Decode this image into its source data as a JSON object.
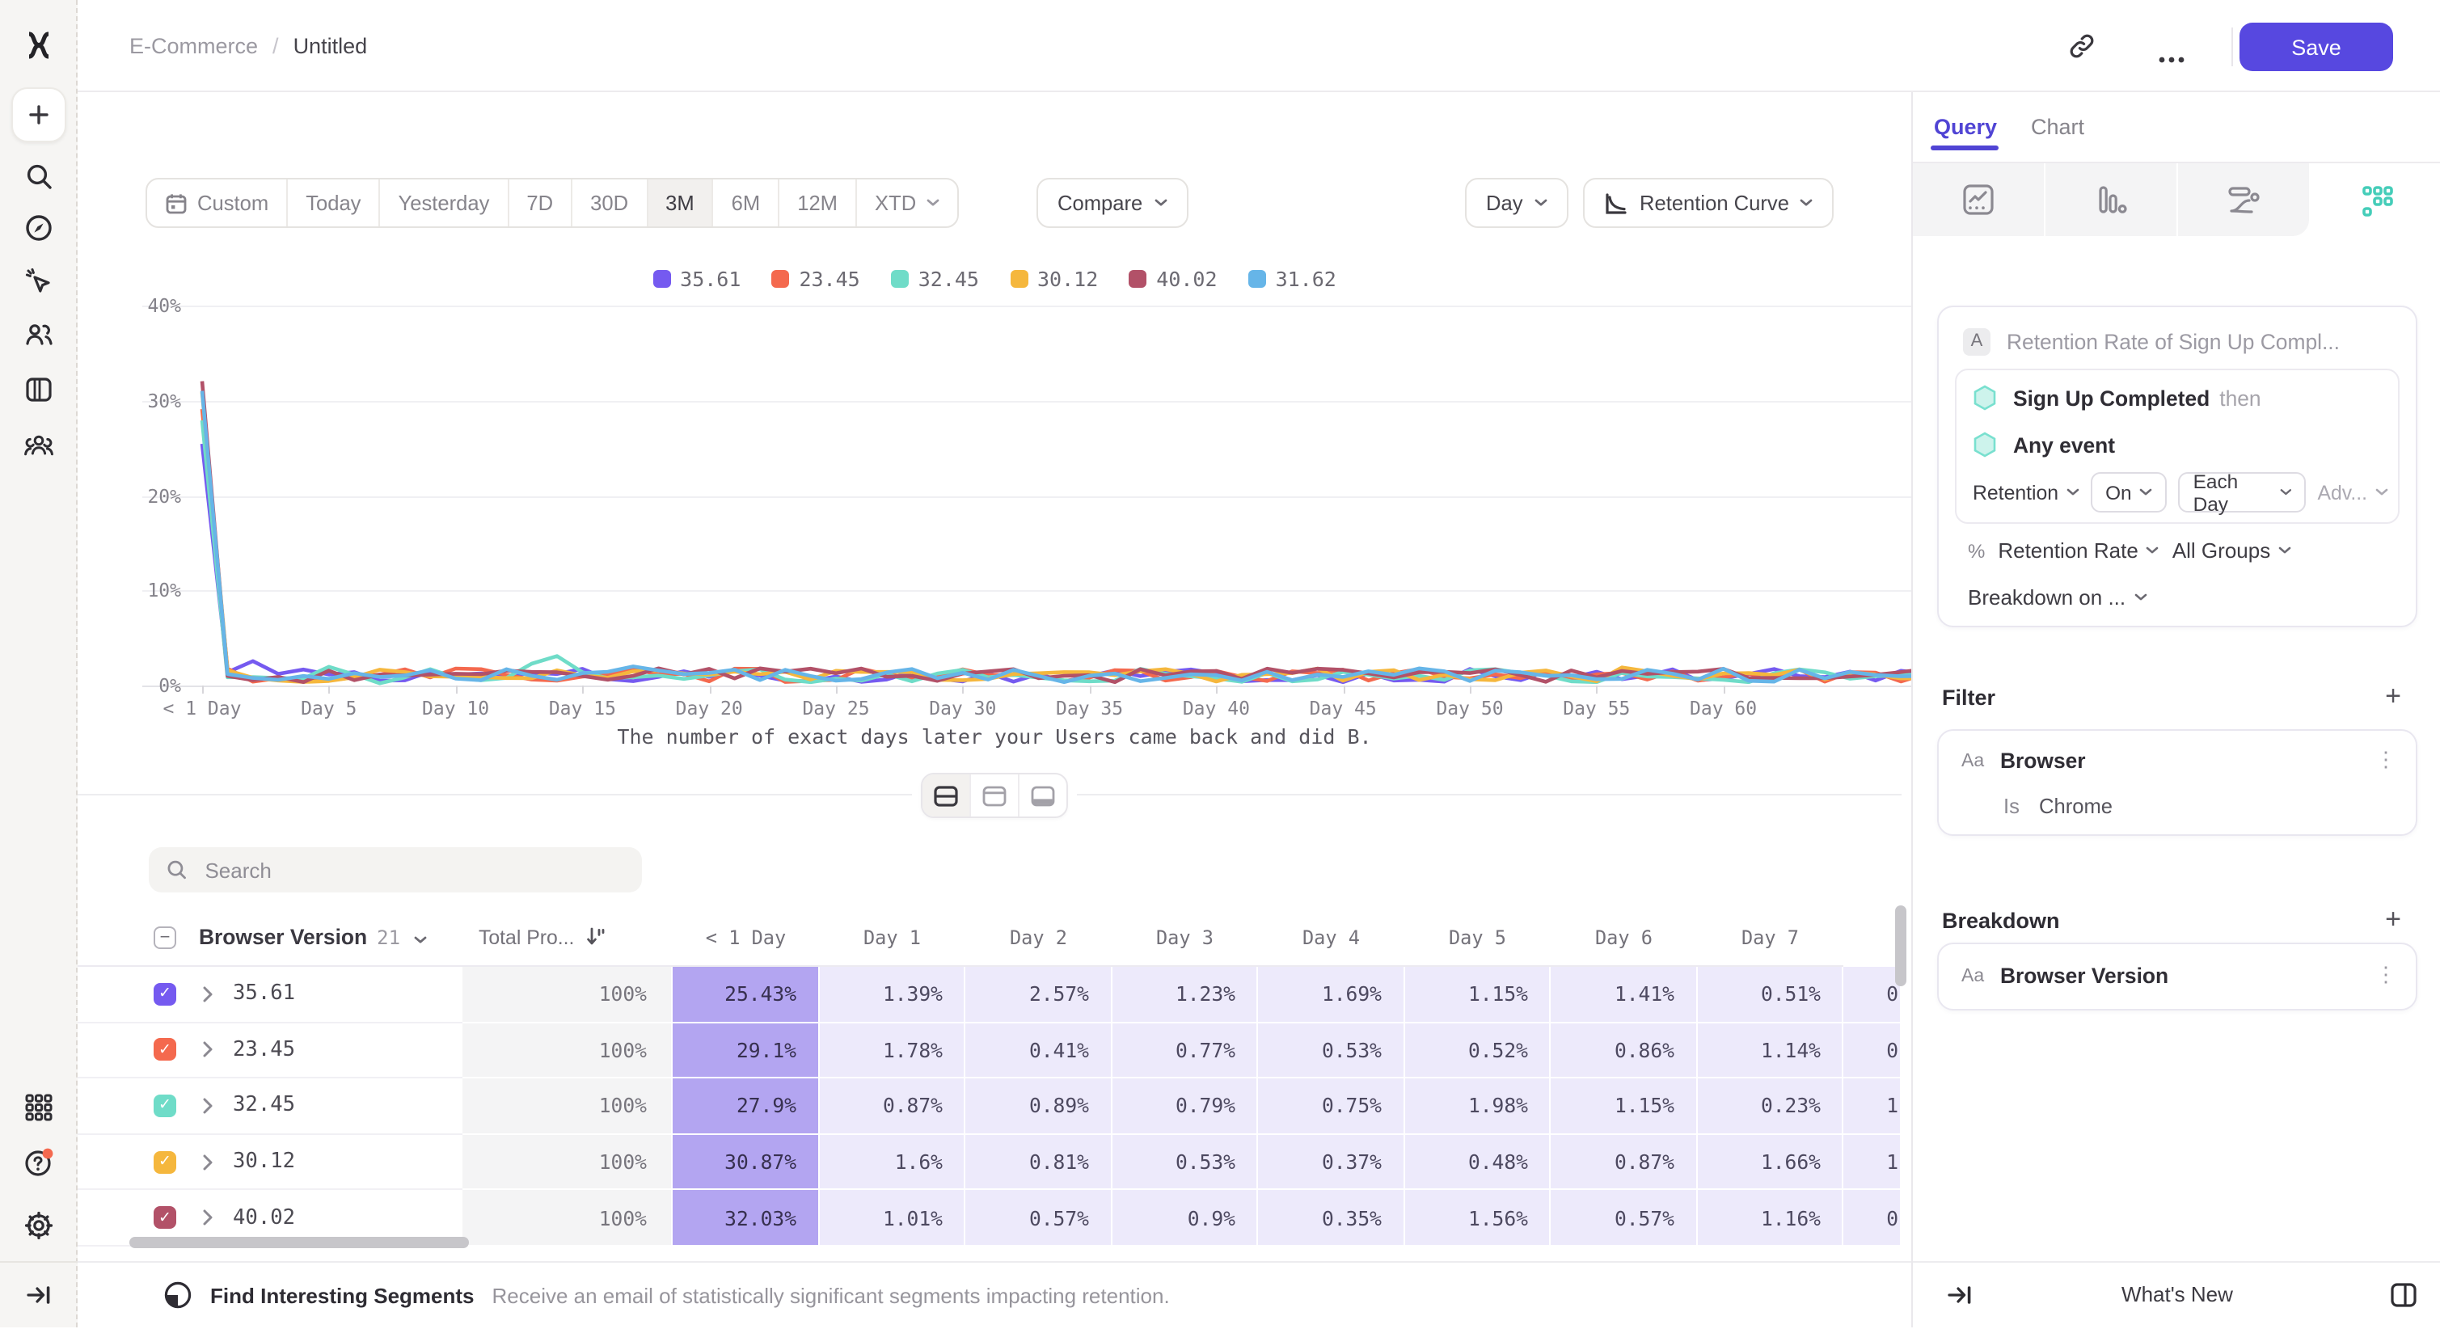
{
  "header": {
    "breadcrumb_root": "E-Commerce",
    "breadcrumb_sep": "/",
    "breadcrumb_current": "Untitled",
    "save_label": "Save"
  },
  "toolbar": {
    "date_ranges": [
      "Custom",
      "Today",
      "Yesterday",
      "7D",
      "30D",
      "3M",
      "6M",
      "12M",
      "XTD"
    ],
    "selected_range": "3M",
    "compare_label": "Compare",
    "granularity_label": "Day",
    "chart_type_label": "Retention Curve"
  },
  "legend": [
    {
      "label": "35.61",
      "color": "#755af0"
    },
    {
      "label": "23.45",
      "color": "#f4694e"
    },
    {
      "label": "32.45",
      "color": "#6fdcc8"
    },
    {
      "label": "30.12",
      "color": "#f5b73d"
    },
    {
      "label": "40.02",
      "color": "#b25168"
    },
    {
      "label": "31.62",
      "color": "#66b5e8"
    }
  ],
  "chart": {
    "y_ticks": [
      "40%",
      "30%",
      "20%",
      "10%",
      "0%"
    ],
    "x_ticks": [
      "< 1 Day",
      "Day 5",
      "Day 10",
      "Day 15",
      "Day 20",
      "Day 25",
      "Day 30",
      "Day 35",
      "Day 40",
      "Day 45",
      "Day 50",
      "Day 55",
      "Day 60"
    ],
    "caption": "The number of exact days later your Users came back and did B."
  },
  "chart_data": {
    "type": "line",
    "title": "Retention Curve",
    "xlabel": "The number of exact days later your Users came back and did B.",
    "ylabel": "Retention Rate (%)",
    "ylim": [
      0,
      40
    ],
    "x_range_days": [
      0,
      60
    ],
    "x_tick_labels": [
      "< 1 Day",
      "Day 5",
      "Day 10",
      "Day 15",
      "Day 20",
      "Day 25",
      "Day 30",
      "Day 35",
      "Day 40",
      "Day 45",
      "Day 50",
      "Day 55",
      "Day 60"
    ],
    "grid": "horizontal",
    "legend_position": "top-center",
    "note": "Each series drops from ~25-32% at day 0 to ~0.2-3% noise for days 1-60.",
    "series": [
      {
        "name": "35.61",
        "color": "#755af0",
        "days_0_to_7_pct": [
          25.43,
          1.39,
          2.57,
          1.23,
          1.69,
          1.15,
          1.41,
          0.51
        ]
      },
      {
        "name": "23.45",
        "color": "#f4694e",
        "days_0_to_7_pct": [
          29.1,
          1.78,
          0.41,
          0.77,
          0.53,
          0.52,
          0.86,
          1.14
        ]
      },
      {
        "name": "32.45",
        "color": "#6fdcc8",
        "days_0_to_7_pct": [
          27.9,
          0.87,
          0.89,
          0.79,
          0.75,
          1.98,
          1.15,
          0.23
        ]
      },
      {
        "name": "30.12",
        "color": "#f5b73d",
        "days_0_to_7_pct": [
          30.87,
          1.6,
          0.81,
          0.53,
          0.37,
          0.48,
          0.87,
          1.66
        ]
      },
      {
        "name": "40.02",
        "color": "#b25168",
        "days_0_to_7_pct": [
          32.03,
          1.01,
          0.57,
          0.9,
          0.35,
          1.56,
          0.57,
          1.16
        ]
      },
      {
        "name": "31.62",
        "color": "#66b5e8",
        "days_0_to_7_pct": [
          31.0,
          1.2,
          0.8,
          0.6,
          1.0,
          0.7,
          1.3,
          0.9
        ],
        "approximate": true
      }
    ]
  },
  "view_toggles": {
    "options": [
      "split-view",
      "chart-only-view",
      "table-only-view"
    ],
    "selected": "split-view"
  },
  "table": {
    "search_placeholder": "Search",
    "group_column_label": "Browser Version",
    "group_count": "21",
    "total_column_label": "Total Pro...",
    "day_columns": [
      "< 1 Day",
      "Day 1",
      "Day 2",
      "Day 3",
      "Day 4",
      "Day 5",
      "Day 6",
      "Day 7"
    ],
    "rows": [
      {
        "label": "35.61",
        "color": "#755af0",
        "total": "100%",
        "values": [
          "25.43%",
          "1.39%",
          "2.57%",
          "1.23%",
          "1.69%",
          "1.15%",
          "1.41%",
          "0.51%"
        ],
        "day8_partial": "0"
      },
      {
        "label": "23.45",
        "color": "#f4694e",
        "total": "100%",
        "values": [
          "29.1%",
          "1.78%",
          "0.41%",
          "0.77%",
          "0.53%",
          "0.52%",
          "0.86%",
          "1.14%"
        ],
        "day8_partial": "0"
      },
      {
        "label": "32.45",
        "color": "#6fdcc8",
        "total": "100%",
        "values": [
          "27.9%",
          "0.87%",
          "0.89%",
          "0.79%",
          "0.75%",
          "1.98%",
          "1.15%",
          "0.23%"
        ],
        "day8_partial": "1"
      },
      {
        "label": "30.12",
        "color": "#f5b73d",
        "total": "100%",
        "values": [
          "30.87%",
          "1.6%",
          "0.81%",
          "0.53%",
          "0.37%",
          "0.48%",
          "0.87%",
          "1.66%"
        ],
        "day8_partial": "1"
      },
      {
        "label": "40.02",
        "color": "#b25168",
        "total": "100%",
        "values": [
          "32.03%",
          "1.01%",
          "0.57%",
          "0.9%",
          "0.35%",
          "1.56%",
          "0.57%",
          "1.16%"
        ],
        "day8_partial": "0"
      }
    ]
  },
  "footer": {
    "title": "Find Interesting Segments",
    "description": "Receive an email of statistically significant segments impacting retention."
  },
  "panel": {
    "tab_query": "Query",
    "tab_chart": "Chart",
    "query_card": {
      "badge": "A",
      "title": "Retention Rate of Sign Up Compl...",
      "event_a": "Sign Up Completed",
      "then_label": "then",
      "event_b": "Any event",
      "retention_label": "Retention",
      "on_label": "On",
      "each_day_label": "Each Day",
      "advanced_label": "Adv...",
      "percent_sign": "%",
      "measure_label": "Retention Rate",
      "groups_label": "All Groups",
      "breakdown_on_label": "Breakdown on ..."
    },
    "filter": {
      "heading": "Filter",
      "type_icon": "Aa",
      "property": "Browser",
      "operator": "Is",
      "value": "Chrome"
    },
    "breakdown": {
      "heading": "Breakdown",
      "type_icon": "Aa",
      "property": "Browser Version"
    },
    "whats_new": "What's New"
  }
}
